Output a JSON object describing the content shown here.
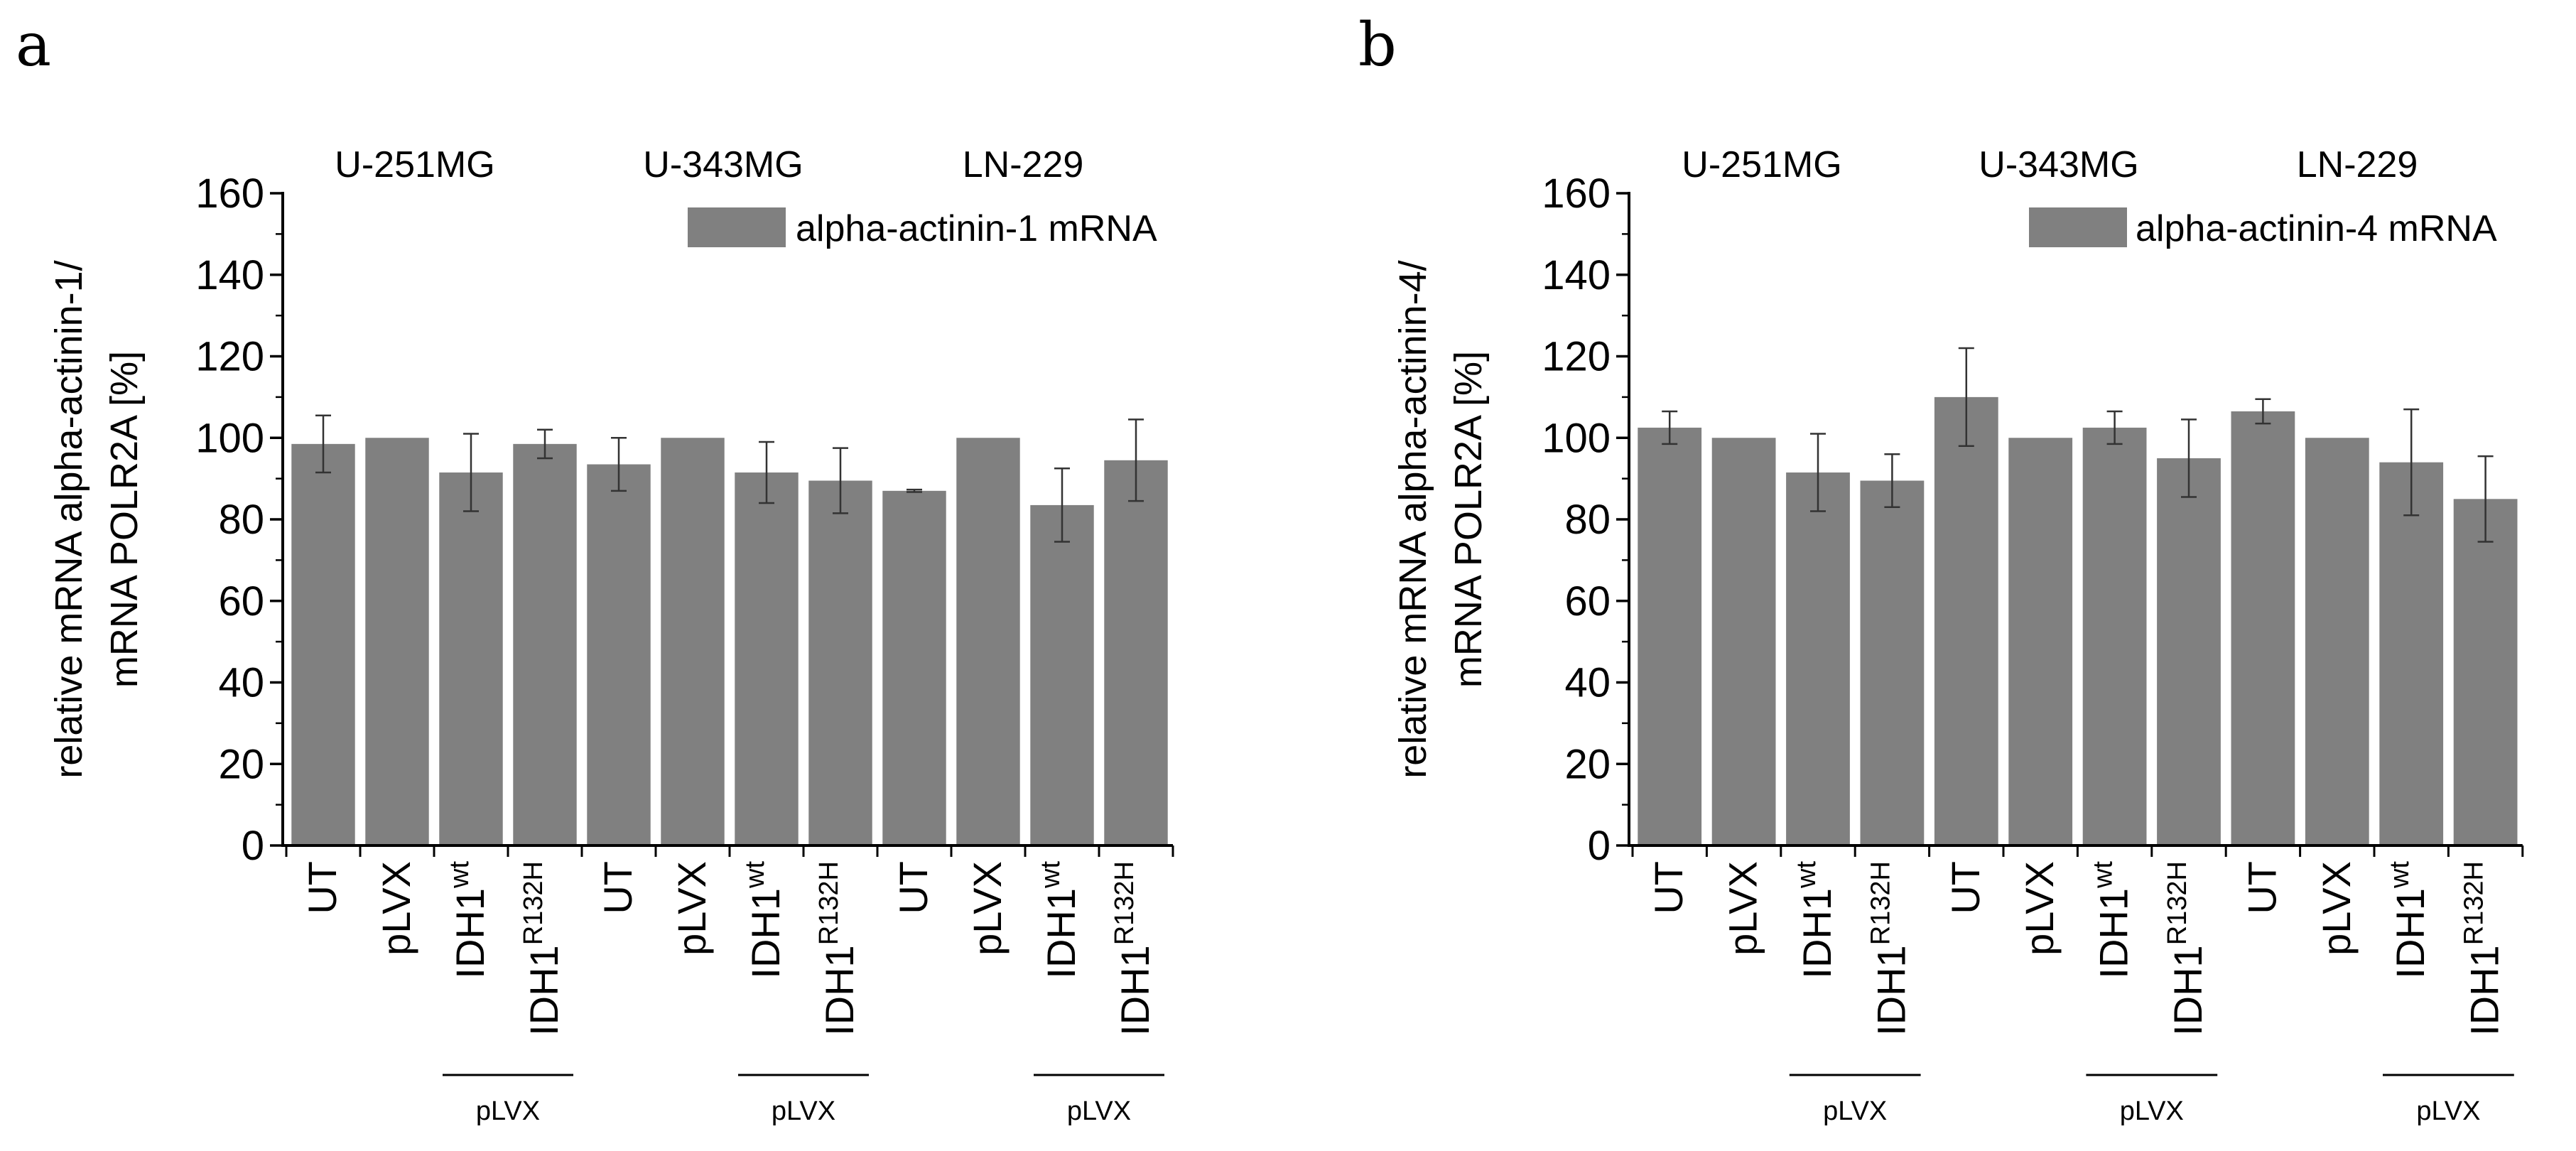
{
  "chart_data": [
    {
      "panel": "a",
      "type": "bar",
      "title": "",
      "ylabel_lines": [
        "relative mRNA alpha-actinin-1/",
        "mRNA POLR2A [%]"
      ],
      "ylim": [
        0,
        160
      ],
      "yticks": [
        0,
        20,
        40,
        60,
        80,
        100,
        120,
        140,
        160
      ],
      "legend": {
        "label": "alpha-actinin-1 mRNA",
        "position": "top-right"
      },
      "bar_color": "#808080",
      "groups": [
        {
          "title": "U-251MG",
          "bracket_label": "pLVX"
        },
        {
          "title": "U-343MG",
          "bracket_label": "pLVX"
        },
        {
          "title": "LN-229",
          "bracket_label": "pLVX"
        }
      ],
      "bars": [
        {
          "base": "UT",
          "sup": "",
          "value": 98.5,
          "error": 7
        },
        {
          "base": "pLVX",
          "sup": "",
          "value": 100,
          "error": 0
        },
        {
          "base": "IDH1",
          "sup": "wt",
          "value": 91.5,
          "error": 9.5
        },
        {
          "base": "IDH1",
          "sup": "R132H",
          "value": 98.5,
          "error": 3.5
        },
        {
          "base": "UT",
          "sup": "",
          "value": 93.5,
          "error": 6.5
        },
        {
          "base": "pLVX",
          "sup": "",
          "value": 100,
          "error": 0
        },
        {
          "base": "IDH1",
          "sup": "wt",
          "value": 91.5,
          "error": 7.5
        },
        {
          "base": "IDH1",
          "sup": "R132H",
          "value": 89.5,
          "error": 8
        },
        {
          "base": "UT",
          "sup": "",
          "value": 87,
          "error": 0.3
        },
        {
          "base": "pLVX",
          "sup": "",
          "value": 100,
          "error": 0
        },
        {
          "base": "IDH1",
          "sup": "wt",
          "value": 83.5,
          "error": 9
        },
        {
          "base": "IDH1",
          "sup": "R132H",
          "value": 94.5,
          "error": 10
        }
      ]
    },
    {
      "panel": "b",
      "type": "bar",
      "title": "",
      "ylabel_lines": [
        "relative mRNA alpha-actinin-4/",
        "mRNA POLR2A [%]"
      ],
      "ylim": [
        0,
        160
      ],
      "yticks": [
        0,
        20,
        40,
        60,
        80,
        100,
        120,
        140,
        160
      ],
      "legend": {
        "label": "alpha-actinin-4 mRNA",
        "position": "top-right"
      },
      "bar_color": "#808080",
      "groups": [
        {
          "title": "U-251MG",
          "bracket_label": "pLVX"
        },
        {
          "title": "U-343MG",
          "bracket_label": "pLVX"
        },
        {
          "title": "LN-229",
          "bracket_label": "pLVX"
        }
      ],
      "bars": [
        {
          "base": "UT",
          "sup": "",
          "value": 102.5,
          "error": 4
        },
        {
          "base": "pLVX",
          "sup": "",
          "value": 100,
          "error": 0
        },
        {
          "base": "IDH1",
          "sup": "wt",
          "value": 91.5,
          "error": 9.5
        },
        {
          "base": "IDH1",
          "sup": "R132H",
          "value": 89.5,
          "error": 6.5
        },
        {
          "base": "UT",
          "sup": "",
          "value": 110,
          "error": 12
        },
        {
          "base": "pLVX",
          "sup": "",
          "value": 100,
          "error": 0
        },
        {
          "base": "IDH1",
          "sup": "wt",
          "value": 102.5,
          "error": 4
        },
        {
          "base": "IDH1",
          "sup": "R132H",
          "value": 95,
          "error": 9.5
        },
        {
          "base": "UT",
          "sup": "",
          "value": 106.5,
          "error": 3
        },
        {
          "base": "pLVX",
          "sup": "",
          "value": 100,
          "error": 0
        },
        {
          "base": "IDH1",
          "sup": "wt",
          "value": 94,
          "error": 13
        },
        {
          "base": "IDH1",
          "sup": "R132H",
          "value": 85,
          "error": 10.5
        }
      ]
    }
  ]
}
